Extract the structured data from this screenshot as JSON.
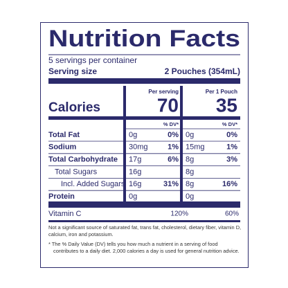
{
  "title": "Nutrition Facts",
  "servings": "5 servings per container",
  "serving_size": {
    "label": "Serving size",
    "value": "2 Pouches (354mL)"
  },
  "calories_label": "Calories",
  "columns": [
    {
      "header": "Per serving",
      "calories": 70,
      "dv_header": "% DV*"
    },
    {
      "header": "Per 1 Pouch",
      "calories": 35,
      "dv_header": "% DV*"
    }
  ],
  "rows": [
    {
      "name": "Total Fat",
      "bold": true,
      "indent": 0,
      "cells": [
        {
          "amount": "0g",
          "dv": "0%"
        },
        {
          "amount": "0g",
          "dv": "0%"
        }
      ]
    },
    {
      "name": "Sodium",
      "bold": true,
      "indent": 0,
      "cells": [
        {
          "amount": "30mg",
          "dv": "1%"
        },
        {
          "amount": "15mg",
          "dv": "1%"
        }
      ]
    },
    {
      "name": "Total Carbohydrate",
      "bold": true,
      "indent": 0,
      "cells": [
        {
          "amount": "17g",
          "dv": "6%"
        },
        {
          "amount": "8g",
          "dv": "3%"
        }
      ]
    },
    {
      "name": "Total Sugars",
      "bold": false,
      "indent": 1,
      "cells": [
        {
          "amount": "16g"
        },
        {
          "amount": "8g"
        }
      ]
    },
    {
      "name": "Incl. Added Sugars",
      "bold": false,
      "indent": 2,
      "cells": [
        {
          "amount": "16g",
          "dv": "31%"
        },
        {
          "amount": "8g",
          "dv": "16%"
        }
      ]
    },
    {
      "name": "Protein",
      "bold": true,
      "indent": 0,
      "cells": [
        {
          "amount": "0g"
        },
        {
          "amount": "0g"
        }
      ]
    }
  ],
  "vitamins": [
    {
      "name": "Vitamin C",
      "cells": [
        {
          "dv": "120%"
        },
        {
          "dv": "60%"
        }
      ]
    }
  ],
  "footnotes": [
    "Not a significant source of saturated fat, trans fat, cholesterol, dietary fiber, vitamin D, calcium, iron and potassium.",
    "* The % Daily Value (DV) tells you how much a nutrient in a serving of food contributes to a daily diet. 2,000 calories a day is used for general nutrition advice."
  ]
}
